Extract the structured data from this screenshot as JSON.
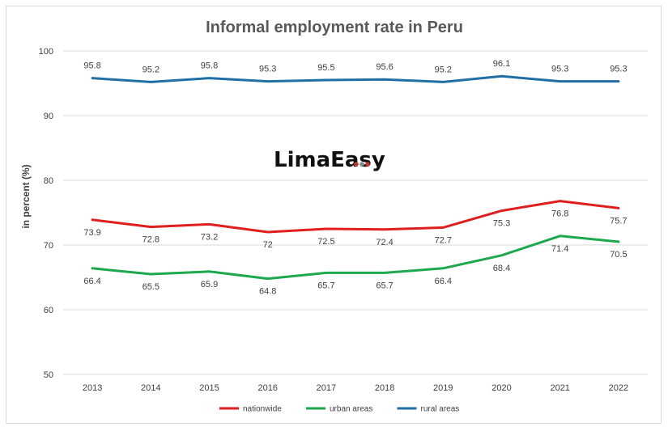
{
  "chart_data": {
    "type": "line",
    "title": "Informal employment rate in Peru",
    "ylabel": "in percent (%)",
    "xlabel": "",
    "ylim": [
      50,
      100
    ],
    "yticks": [
      50,
      60,
      70,
      80,
      90,
      100
    ],
    "x": [
      "2013",
      "2014",
      "2015",
      "2016",
      "2017",
      "2018",
      "2019",
      "2020",
      "2021",
      "2022"
    ],
    "grid": true,
    "legend_position": "bottom",
    "series": [
      {
        "name": "nationwide",
        "color": "#e01e1e",
        "values": [
          73.9,
          72.8,
          73.2,
          72,
          72.5,
          72.4,
          72.7,
          75.3,
          76.8,
          75.7
        ],
        "labels": [
          "73.9",
          "72.8",
          "73.2",
          "72",
          "72.5",
          "72.4",
          "72.7",
          "75.3",
          "76.8",
          "75.7"
        ],
        "label_side": "below"
      },
      {
        "name": "urban areas",
        "color": "#1ca84d",
        "values": [
          66.4,
          65.5,
          65.9,
          64.8,
          65.7,
          65.7,
          66.4,
          68.4,
          71.4,
          70.5
        ],
        "labels": [
          "66.4",
          "65.5",
          "65.9",
          "64.8",
          "65.7",
          "65.7",
          "66.4",
          "68.4",
          "71.4",
          "70.5"
        ],
        "label_side": "below"
      },
      {
        "name": "rural areas",
        "color": "#1f6fa6",
        "values": [
          95.8,
          95.2,
          95.8,
          95.3,
          95.5,
          95.6,
          95.2,
          96.1,
          95.3,
          95.3
        ],
        "labels": [
          "95.8",
          "95.2",
          "95.8",
          "95.3",
          "95.5",
          "95.6",
          "95.2",
          "96.1",
          "95.3",
          "95.3"
        ],
        "label_side": "above"
      }
    ]
  },
  "watermark": {
    "text": "LimaEasy",
    "dot_colors": [
      "#c0392b",
      "#7f8c8d",
      "#c0392b"
    ]
  },
  "colors": {
    "gridline": "#d9d9d9",
    "frame_border": "#d9d9d9"
  }
}
